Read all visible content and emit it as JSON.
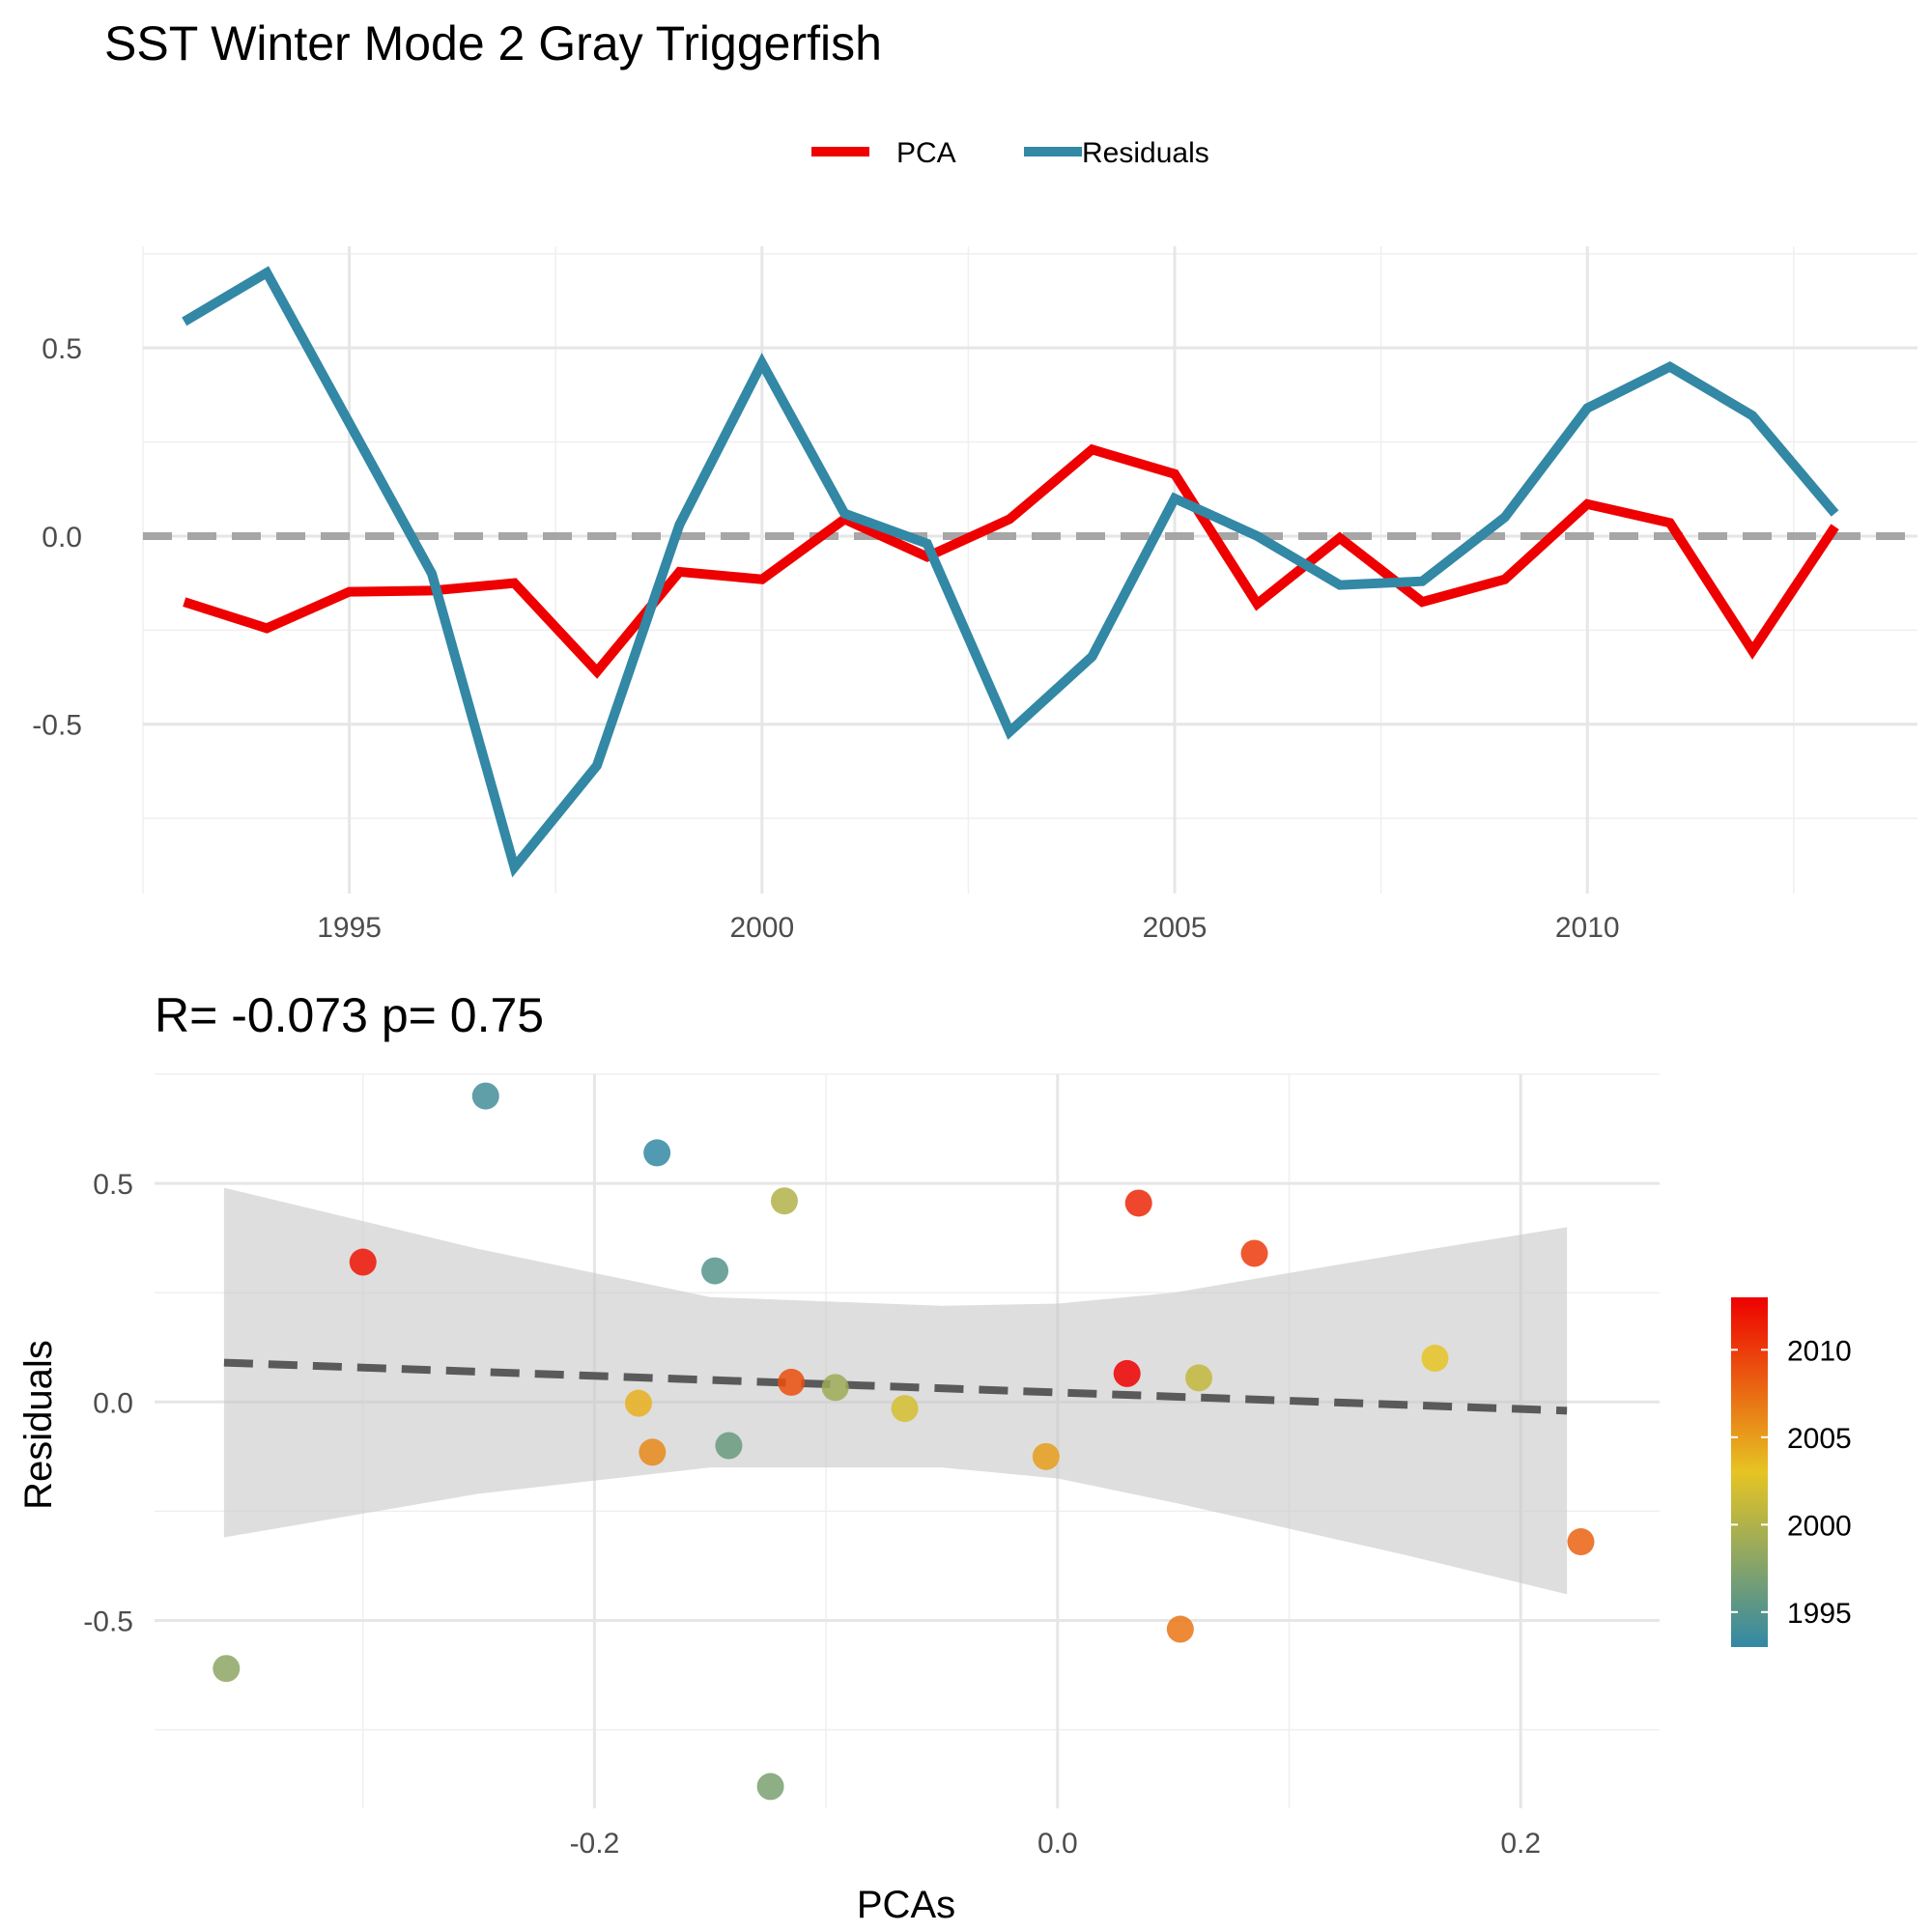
{
  "title": "SST Winter Mode 2 Gray Triggerfish",
  "chart_data": [
    {
      "type": "line",
      "title": "SST Winter Mode 2 Gray Triggerfish",
      "xlabel": "",
      "ylabel": "",
      "xlim": [
        1992.5,
        2014
      ],
      "ylim": [
        -0.95,
        0.77
      ],
      "x_ticks": [
        "1995",
        "2000",
        "2005",
        "2010"
      ],
      "y_ticks": [
        "0.5",
        "0.0",
        "-0.5"
      ],
      "legend_position": "top",
      "reference_line": {
        "y": 0,
        "style": "dashed",
        "color": "#a6a6a6"
      },
      "x": [
        1993,
        1994,
        1995,
        1996,
        1997,
        1998,
        1999,
        2000,
        2001,
        2002,
        2003,
        2004,
        2005,
        2006,
        2007,
        2008,
        2009,
        2010,
        2011,
        2012,
        2013
      ],
      "series": [
        {
          "name": "PCA",
          "color": "#ee0000",
          "values": [
            -0.175,
            -0.245,
            -0.148,
            -0.145,
            -0.125,
            -0.36,
            -0.095,
            -0.115,
            0.045,
            -0.055,
            0.045,
            0.23,
            0.165,
            -0.18,
            -0.005,
            -0.175,
            -0.115,
            0.085,
            0.035,
            -0.305,
            0.025
          ]
        },
        {
          "name": "Residuals",
          "color": "#3288a5",
          "values": [
            0.57,
            0.7,
            0.3,
            -0.1,
            -0.88,
            -0.61,
            0.03,
            0.46,
            0.06,
            -0.02,
            -0.52,
            -0.32,
            0.1,
            0.0,
            -0.13,
            -0.12,
            0.05,
            0.34,
            0.45,
            0.32,
            0.06
          ]
        }
      ]
    },
    {
      "type": "scatter",
      "title": "R= -0.073  p= 0.75",
      "xlabel": "PCAs",
      "ylabel": "Residuals",
      "xlim": [
        -0.39,
        0.26
      ],
      "ylim": [
        -0.93,
        0.75
      ],
      "x_ticks": [
        "-0.2",
        "0.0",
        "0.2"
      ],
      "y_ticks": [
        "0.5",
        "0.0",
        "-0.5"
      ],
      "colorbar": {
        "ticks": [
          "2010",
          "2005",
          "2000",
          "1995"
        ],
        "range": [
          1993,
          2013
        ],
        "colors": [
          "#3288a5",
          "#e6c423",
          "#ee0000"
        ]
      },
      "fit_line": {
        "x": [
          -0.36,
          0.22
        ],
        "y": [
          0.09,
          -0.02
        ],
        "style": "dashed"
      },
      "confidence_band": {
        "x": [
          -0.36,
          -0.25,
          -0.15,
          -0.05,
          0.0,
          0.05,
          0.15,
          0.22
        ],
        "upper": [
          0.49,
          0.35,
          0.24,
          0.22,
          0.225,
          0.25,
          0.34,
          0.4
        ],
        "lower": [
          -0.31,
          -0.21,
          -0.15,
          -0.15,
          -0.175,
          -0.23,
          -0.35,
          -0.44
        ]
      },
      "points": [
        {
          "year": 1993,
          "x": -0.173,
          "y": 0.57
        },
        {
          "year": 1994,
          "x": -0.247,
          "y": 0.7
        },
        {
          "year": 1995,
          "x": -0.148,
          "y": 0.3
        },
        {
          "year": 1996,
          "x": -0.142,
          "y": -0.1
        },
        {
          "year": 1997,
          "x": -0.124,
          "y": -0.88
        },
        {
          "year": 1998,
          "x": -0.359,
          "y": -0.61
        },
        {
          "year": 1999,
          "x": -0.096,
          "y": 0.033
        },
        {
          "year": 2000,
          "x": -0.118,
          "y": 0.46
        },
        {
          "year": 2001,
          "x": 0.061,
          "y": 0.055
        },
        {
          "year": 2002,
          "x": -0.066,
          "y": -0.015
        },
        {
          "year": 2003,
          "x": 0.163,
          "y": 0.1
        },
        {
          "year": 2004,
          "x": -0.181,
          "y": -0.003
        },
        {
          "year": 2005,
          "x": -0.005,
          "y": -0.125
        },
        {
          "year": 2006,
          "x": -0.175,
          "y": -0.115
        },
        {
          "year": 2007,
          "x": 0.053,
          "y": -0.52
        },
        {
          "year": 2008,
          "x": 0.226,
          "y": -0.32
        },
        {
          "year": 2009,
          "x": -0.115,
          "y": 0.045
        },
        {
          "year": 2010,
          "x": 0.085,
          "y": 0.34
        },
        {
          "year": 2011,
          "x": 0.035,
          "y": 0.455
        },
        {
          "year": 2012,
          "x": -0.3,
          "y": 0.32
        },
        {
          "year": 2013,
          "x": 0.03,
          "y": 0.065
        }
      ]
    }
  ]
}
